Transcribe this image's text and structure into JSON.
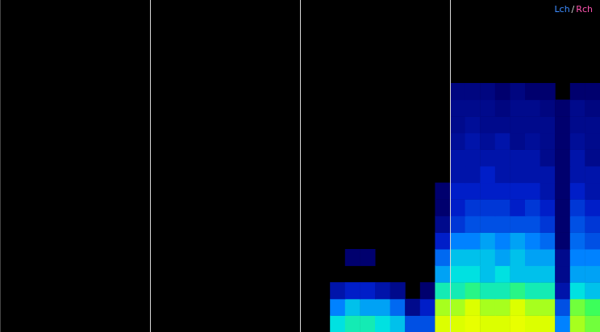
{
  "chart_data": {
    "type": "heatmap",
    "x": [
      2.25,
      2.35,
      2.45,
      2.55,
      2.65,
      2.75,
      2.85,
      2.95,
      3.05,
      3.15,
      3.25,
      3.35,
      3.45,
      3.55,
      3.65,
      3.75,
      3.85,
      3.95
    ],
    "y": [
      0.025,
      0.075,
      0.125,
      0.175,
      0.225,
      0.275,
      0.325,
      0.375,
      0.425,
      0.475,
      0.525,
      0.575,
      0.625,
      0.675,
      0.725
    ],
    "z": [
      [
        0.55,
        0.6,
        0.6,
        0.55,
        0.5,
        0.3,
        0.3,
        0.85,
        0.85,
        0.9,
        0.85,
        0.85,
        0.9,
        0.85,
        0.85,
        0.4,
        0.8,
        0.75
      ],
      [
        0.4,
        0.5,
        0.45,
        0.45,
        0.35,
        0.1,
        0.2,
        0.8,
        0.8,
        0.85,
        0.8,
        0.8,
        0.85,
        0.8,
        0.8,
        0.3,
        0.75,
        0.7
      ],
      [
        0.15,
        0.2,
        0.2,
        0.15,
        0.1,
        0,
        0.05,
        0.6,
        0.6,
        0.65,
        0.6,
        0.6,
        0.65,
        0.6,
        0.6,
        0.15,
        0.55,
        0.5
      ],
      [
        0,
        0,
        0,
        0,
        0,
        0,
        0,
        0.45,
        0.55,
        0.55,
        0.5,
        0.55,
        0.5,
        0.5,
        0.5,
        0.1,
        0.45,
        0.45
      ],
      [
        0,
        0.05,
        0.05,
        0,
        0,
        0,
        0,
        0.35,
        0.5,
        0.5,
        0.5,
        0.45,
        0.5,
        0.45,
        0.45,
        0.1,
        0.4,
        0.4
      ],
      [
        0,
        0,
        0,
        0,
        0,
        0,
        0,
        0.2,
        0.4,
        0.4,
        0.45,
        0.4,
        0.45,
        0.4,
        0.35,
        0.05,
        0.35,
        0.3
      ],
      [
        0,
        0,
        0,
        0,
        0,
        0,
        0,
        0.1,
        0.25,
        0.3,
        0.3,
        0.3,
        0.3,
        0.3,
        0.25,
        0.05,
        0.3,
        0.25
      ],
      [
        0,
        0,
        0,
        0,
        0,
        0,
        0,
        0.05,
        0.2,
        0.25,
        0.25,
        0.25,
        0.2,
        0.25,
        0.2,
        0.05,
        0.25,
        0.2
      ],
      [
        0,
        0,
        0,
        0,
        0,
        0,
        0,
        0.05,
        0.2,
        0.2,
        0.2,
        0.2,
        0.2,
        0.2,
        0.15,
        0.05,
        0.2,
        0.15
      ],
      [
        0,
        0,
        0,
        0,
        0,
        0,
        0,
        0,
        0.15,
        0.15,
        0.2,
        0.15,
        0.15,
        0.15,
        0.15,
        0.05,
        0.15,
        0.15
      ],
      [
        0,
        0,
        0,
        0,
        0,
        0,
        0,
        0,
        0.15,
        0.15,
        0.15,
        0.15,
        0.15,
        0.15,
        0.1,
        0.05,
        0.15,
        0.1
      ],
      [
        0,
        0,
        0,
        0,
        0,
        0,
        0,
        0,
        0.12,
        0.15,
        0.12,
        0.15,
        0.1,
        0.12,
        0.1,
        0.05,
        0.12,
        0.1
      ],
      [
        0,
        0,
        0,
        0,
        0,
        0,
        0,
        0,
        0.1,
        0.12,
        0.1,
        0.1,
        0.1,
        0.1,
        0.1,
        0.05,
        0.1,
        0.1
      ],
      [
        0,
        0,
        0,
        0,
        0,
        0,
        0,
        0,
        0.1,
        0.1,
        0.1,
        0.08,
        0.1,
        0.1,
        0.08,
        0.05,
        0.1,
        0.08
      ],
      [
        0,
        0,
        0,
        0,
        0,
        0,
        0,
        0,
        0.08,
        0.08,
        0.08,
        0.05,
        0.08,
        0.05,
        0.05,
        0,
        0.05,
        0.05
      ]
    ],
    "xlim": [
      0,
      4
    ],
    "xticks": [
      1,
      2,
      3
    ],
    "ylim": [
      0,
      1
    ],
    "yticks": [],
    "grid": true,
    "tick_labels": false,
    "annotations": [
      {
        "text": "Lch",
        "color": "#3d8cff"
      },
      {
        "text": "/",
        "color": "#d0d0d0"
      },
      {
        "text": "Rch",
        "color": "#ff55b0"
      }
    ]
  }
}
